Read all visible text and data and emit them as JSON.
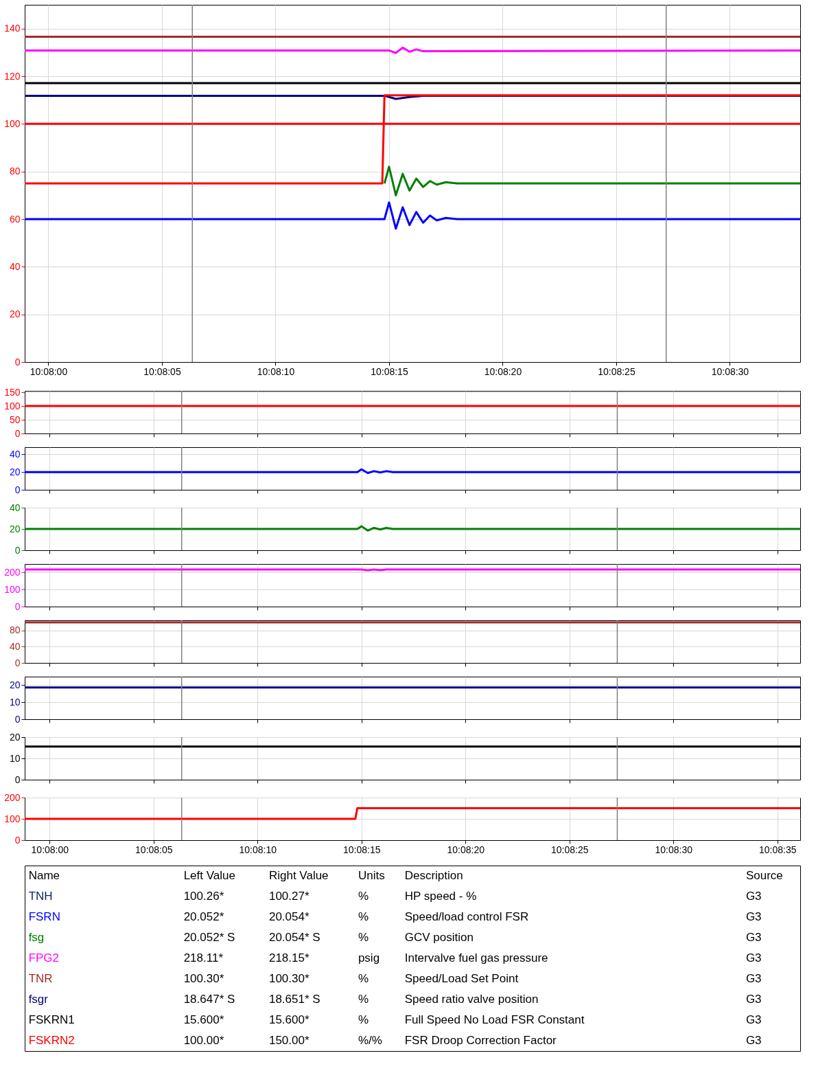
{
  "chart_data": [
    {
      "type": "line",
      "xlim": [
        10.133044,
        10.142528
      ],
      "ylim": [
        0,
        150
      ],
      "grid": true,
      "xticks": [
        {
          "value": 10.133333,
          "label": "10:08:00"
        },
        {
          "value": 10.134722,
          "label": "10:08:05"
        },
        {
          "value": 10.136111,
          "label": "10:08:10"
        },
        {
          "value": 10.1375,
          "label": "10:08:15"
        },
        {
          "value": 10.138889,
          "label": "10:08:20"
        },
        {
          "value": 10.140278,
          "label": "10:08:25"
        },
        {
          "value": 10.141667,
          "label": "10:08:30"
        }
      ],
      "yticks": [
        0,
        20,
        40,
        60,
        80,
        100,
        120,
        140
      ],
      "ref_lines": [
        {
          "axis": "x",
          "value": 10.135094,
          "color": "#808080"
        },
        {
          "axis": "x",
          "value": 10.140889,
          "color": "#808080"
        }
      ],
      "series": [
        {
          "color": "#ff0000",
          "x": [
            10.133044,
            10.142528
          ],
          "values": [
            100,
            100
          ]
        },
        {
          "color": "#a52a2a",
          "x": [
            10.133044,
            10.142528
          ],
          "values": [
            136.6,
            136.6
          ]
        },
        {
          "color": "#ff00ff",
          "x": [
            10.133044,
            10.1375,
            10.137583,
            10.137667,
            10.13775,
            10.137833,
            10.137917,
            10.142528
          ],
          "values": [
            130.8,
            130.8,
            129.8,
            132,
            130.3,
            131.3,
            130.5,
            130.8
          ]
        },
        {
          "color": "#000000",
          "x": [
            10.133044,
            10.142528
          ],
          "values": [
            117.1,
            117.1
          ]
        },
        {
          "color": "#000080",
          "x": [
            10.133044,
            10.137444,
            10.137583,
            10.13775,
            10.137917,
            10.142528
          ],
          "values": [
            111.8,
            111.8,
            110.5,
            111.3,
            111.8,
            111.8
          ]
        },
        {
          "color": "#008000",
          "x": [
            10.137444,
            10.1375,
            10.137583,
            10.137667,
            10.13775,
            10.137833,
            10.137917,
            10.138,
            10.138083,
            10.138194,
            10.138333,
            10.142528
          ],
          "values": [
            75,
            82,
            70,
            79,
            72,
            77,
            73.5,
            76,
            74.5,
            75.5,
            75,
            75
          ]
        },
        {
          "color": "#0000ff",
          "x": [
            10.133044,
            10.137444,
            10.1375,
            10.137583,
            10.137667,
            10.13775,
            10.137833,
            10.137917,
            10.138,
            10.138083,
            10.138194,
            10.138333,
            10.142528
          ],
          "values": [
            60,
            60,
            67,
            56,
            65,
            57.5,
            63,
            58.5,
            61.5,
            59.5,
            60.5,
            60,
            60
          ]
        },
        {
          "color": "#ff0000",
          "x": [
            10.133044,
            10.137417,
            10.137444,
            10.142528
          ],
          "values": [
            75,
            75,
            112,
            112
          ]
        }
      ]
    },
    {
      "type": "line",
      "xlim": [
        10.133,
        10.143361
      ],
      "ylim": [
        0,
        155
      ],
      "grid": true,
      "tick_labels": "y",
      "xticks": [
        {
          "value": 10.133333,
          "label": null
        },
        {
          "value": 10.134722,
          "label": null
        },
        {
          "value": 10.136111,
          "label": null
        },
        {
          "value": 10.1375,
          "label": null
        },
        {
          "value": 10.138889,
          "label": null
        },
        {
          "value": 10.140278,
          "label": null
        },
        {
          "value": 10.141667,
          "label": null
        },
        {
          "value": 10.143056,
          "label": null
        }
      ],
      "yticks": [
        0,
        50,
        100,
        150
      ],
      "ref_lines": [
        {
          "axis": "x",
          "value": 10.135097,
          "color": "#808080"
        },
        {
          "axis": "x",
          "value": 10.140917,
          "color": "#808080"
        }
      ],
      "series": [
        {
          "color": "#ff0000",
          "x": [
            10.133,
            10.143361
          ],
          "values": [
            100,
            100
          ]
        }
      ]
    },
    {
      "type": "line",
      "xlim": [
        10.133,
        10.143361
      ],
      "ylim": [
        0,
        48
      ],
      "grid": true,
      "tick_labels": "y",
      "xticks": [
        {
          "value": 10.133333,
          "label": null
        },
        {
          "value": 10.134722,
          "label": null
        },
        {
          "value": 10.136111,
          "label": null
        },
        {
          "value": 10.1375,
          "label": null
        },
        {
          "value": 10.138889,
          "label": null
        },
        {
          "value": 10.140278,
          "label": null
        },
        {
          "value": 10.141667,
          "label": null
        },
        {
          "value": 10.143056,
          "label": null
        }
      ],
      "yticks": [
        0,
        20,
        40
      ],
      "ref_lines": [
        {
          "axis": "x",
          "value": 10.135097,
          "color": "#808080"
        },
        {
          "axis": "x",
          "value": 10.140917,
          "color": "#808080"
        }
      ],
      "series": [
        {
          "color": "#0000ff",
          "x": [
            10.133,
            10.137444,
            10.1375,
            10.137583,
            10.137667,
            10.13775,
            10.137833,
            10.137917,
            10.143361
          ],
          "values": [
            20,
            20,
            23,
            19,
            21,
            19.5,
            21,
            20,
            20
          ]
        }
      ]
    },
    {
      "type": "line",
      "xlim": [
        10.133,
        10.143361
      ],
      "ylim": [
        0,
        40
      ],
      "grid": true,
      "tick_labels": "y",
      "xticks": [
        {
          "value": 10.133333,
          "label": null
        },
        {
          "value": 10.134722,
          "label": null
        },
        {
          "value": 10.136111,
          "label": null
        },
        {
          "value": 10.1375,
          "label": null
        },
        {
          "value": 10.138889,
          "label": null
        },
        {
          "value": 10.140278,
          "label": null
        },
        {
          "value": 10.141667,
          "label": null
        },
        {
          "value": 10.143056,
          "label": null
        }
      ],
      "yticks": [
        0,
        20,
        40
      ],
      "ref_lines": [
        {
          "axis": "x",
          "value": 10.135097,
          "color": "#808080"
        },
        {
          "axis": "x",
          "value": 10.140917,
          "color": "#808080"
        }
      ],
      "series": [
        {
          "color": "#008000",
          "x": [
            10.133,
            10.137444,
            10.1375,
            10.137583,
            10.137667,
            10.13775,
            10.137833,
            10.137917,
            10.143361
          ],
          "values": [
            20,
            20,
            22.5,
            18.5,
            21,
            19.5,
            21,
            20,
            20
          ]
        }
      ]
    },
    {
      "type": "line",
      "xlim": [
        10.133,
        10.143361
      ],
      "ylim": [
        0,
        250
      ],
      "grid": true,
      "tick_labels": "y",
      "xticks": [
        {
          "value": 10.133333,
          "label": null
        },
        {
          "value": 10.134722,
          "label": null
        },
        {
          "value": 10.136111,
          "label": null
        },
        {
          "value": 10.1375,
          "label": null
        },
        {
          "value": 10.138889,
          "label": null
        },
        {
          "value": 10.140278,
          "label": null
        },
        {
          "value": 10.141667,
          "label": null
        },
        {
          "value": 10.143056,
          "label": null
        }
      ],
      "yticks": [
        0,
        100,
        200
      ],
      "ref_lines": [
        {
          "axis": "x",
          "value": 10.135097,
          "color": "#808080"
        },
        {
          "axis": "x",
          "value": 10.140917,
          "color": "#808080"
        }
      ],
      "series": [
        {
          "color": "#ff00ff",
          "x": [
            10.133,
            10.1375,
            10.137583,
            10.137667,
            10.13775,
            10.137833,
            10.143361
          ],
          "values": [
            218,
            218,
            213,
            218,
            214,
            218,
            218
          ]
        }
      ]
    },
    {
      "type": "line",
      "xlim": [
        10.133,
        10.143361
      ],
      "ylim": [
        0,
        105
      ],
      "grid": true,
      "tick_labels": "y",
      "xticks": [
        {
          "value": 10.133333,
          "label": null
        },
        {
          "value": 10.134722,
          "label": null
        },
        {
          "value": 10.136111,
          "label": null
        },
        {
          "value": 10.1375,
          "label": null
        },
        {
          "value": 10.138889,
          "label": null
        },
        {
          "value": 10.140278,
          "label": null
        },
        {
          "value": 10.141667,
          "label": null
        },
        {
          "value": 10.143056,
          "label": null
        }
      ],
      "yticks": [
        0,
        40,
        80
      ],
      "ref_lines": [
        {
          "axis": "x",
          "value": 10.135097,
          "color": "#808080"
        },
        {
          "axis": "x",
          "value": 10.140917,
          "color": "#808080"
        }
      ],
      "series": [
        {
          "color": "#a52a2a",
          "x": [
            10.133,
            10.143361
          ],
          "values": [
            100,
            100
          ]
        }
      ]
    },
    {
      "type": "line",
      "xlim": [
        10.133,
        10.143361
      ],
      "ylim": [
        0,
        25
      ],
      "grid": true,
      "tick_labels": "y",
      "xticks": [
        {
          "value": 10.133333,
          "label": null
        },
        {
          "value": 10.134722,
          "label": null
        },
        {
          "value": 10.136111,
          "label": null
        },
        {
          "value": 10.1375,
          "label": null
        },
        {
          "value": 10.138889,
          "label": null
        },
        {
          "value": 10.140278,
          "label": null
        },
        {
          "value": 10.141667,
          "label": null
        },
        {
          "value": 10.143056,
          "label": null
        }
      ],
      "yticks": [
        0,
        10,
        20
      ],
      "ref_lines": [
        {
          "axis": "x",
          "value": 10.135097,
          "color": "#808080"
        },
        {
          "axis": "x",
          "value": 10.140917,
          "color": "#808080"
        }
      ],
      "series": [
        {
          "color": "#000080",
          "x": [
            10.133,
            10.143361
          ],
          "values": [
            18.6,
            18.6
          ]
        }
      ]
    },
    {
      "type": "line",
      "xlim": [
        10.133,
        10.143361
      ],
      "ylim": [
        0,
        20
      ],
      "grid": true,
      "tick_labels": "y",
      "xticks": [
        {
          "value": 10.133333,
          "label": null
        },
        {
          "value": 10.134722,
          "label": null
        },
        {
          "value": 10.136111,
          "label": null
        },
        {
          "value": 10.1375,
          "label": null
        },
        {
          "value": 10.138889,
          "label": null
        },
        {
          "value": 10.140278,
          "label": null
        },
        {
          "value": 10.141667,
          "label": null
        },
        {
          "value": 10.143056,
          "label": null
        }
      ],
      "yticks": [
        0,
        10,
        20
      ],
      "ref_lines": [
        {
          "axis": "x",
          "value": 10.135097,
          "color": "#808080"
        },
        {
          "axis": "x",
          "value": 10.140917,
          "color": "#808080"
        }
      ],
      "series": [
        {
          "color": "#000000",
          "x": [
            10.133,
            10.143361
          ],
          "values": [
            15.6,
            15.6
          ]
        }
      ]
    },
    {
      "type": "line",
      "xlim": [
        10.133,
        10.143361
      ],
      "ylim": [
        0,
        200
      ],
      "grid": true,
      "xticks": [
        {
          "value": 10.133333,
          "label": "10:08:00"
        },
        {
          "value": 10.134722,
          "label": "10:08:05"
        },
        {
          "value": 10.136111,
          "label": "10:08:10"
        },
        {
          "value": 10.1375,
          "label": "10:08:15"
        },
        {
          "value": 10.138889,
          "label": "10:08:20"
        },
        {
          "value": 10.140278,
          "label": "10:08:25"
        },
        {
          "value": 10.141667,
          "label": "10:08:30"
        },
        {
          "value": 10.143056,
          "label": "10:08:35"
        }
      ],
      "yticks": [
        0,
        100,
        200
      ],
      "ref_lines": [
        {
          "axis": "x",
          "value": 10.135097,
          "color": "#808080"
        },
        {
          "axis": "x",
          "value": 10.140917,
          "color": "#808080"
        }
      ],
      "series": [
        {
          "color": "#ff0000",
          "x": [
            10.133,
            10.137417,
            10.137444,
            10.143361
          ],
          "values": [
            100,
            100,
            150,
            150
          ]
        }
      ]
    },
    {
      "type": "other",
      "colors": [
        "#000000",
        "#ffffff",
        "#0000ff",
        "#008000",
        "#ff00ff",
        "#a52a2a",
        "#000080",
        "#000000",
        "#ff0000"
      ],
      "annotations": [
        "Name",
        "Left Value",
        "Right Value",
        "Units",
        "Description",
        "Source",
        "TNH",
        "100.26*",
        "100.27*",
        "%",
        "HP speed - %",
        "G3",
        "FSRN",
        "20.052*",
        "20.054*",
        "%",
        "Speed/load control FSR",
        "G3",
        "fsg",
        "20.052* S",
        "20.054* S",
        "%",
        "GCV position",
        "G3",
        "FPG2",
        "218.11*",
        "218.15*",
        "psig",
        "Intervalve fuel gas pressure",
        "G3",
        "TNR",
        "100.30*",
        "100.30*",
        "%",
        "Speed/Load Set Point",
        "G3",
        "fsgr",
        "18.647* S",
        "18.651* S",
        "%",
        "Speed ratio valve position",
        "G3",
        "FSKRN1",
        "15.600*",
        "15.600*",
        "%",
        "Full Speed No Load FSR Constant",
        "G3",
        "FSKRN2",
        "100.00*",
        "150.00*",
        "%/%",
        "FSR Droop Correction Factor",
        "G3"
      ]
    }
  ]
}
